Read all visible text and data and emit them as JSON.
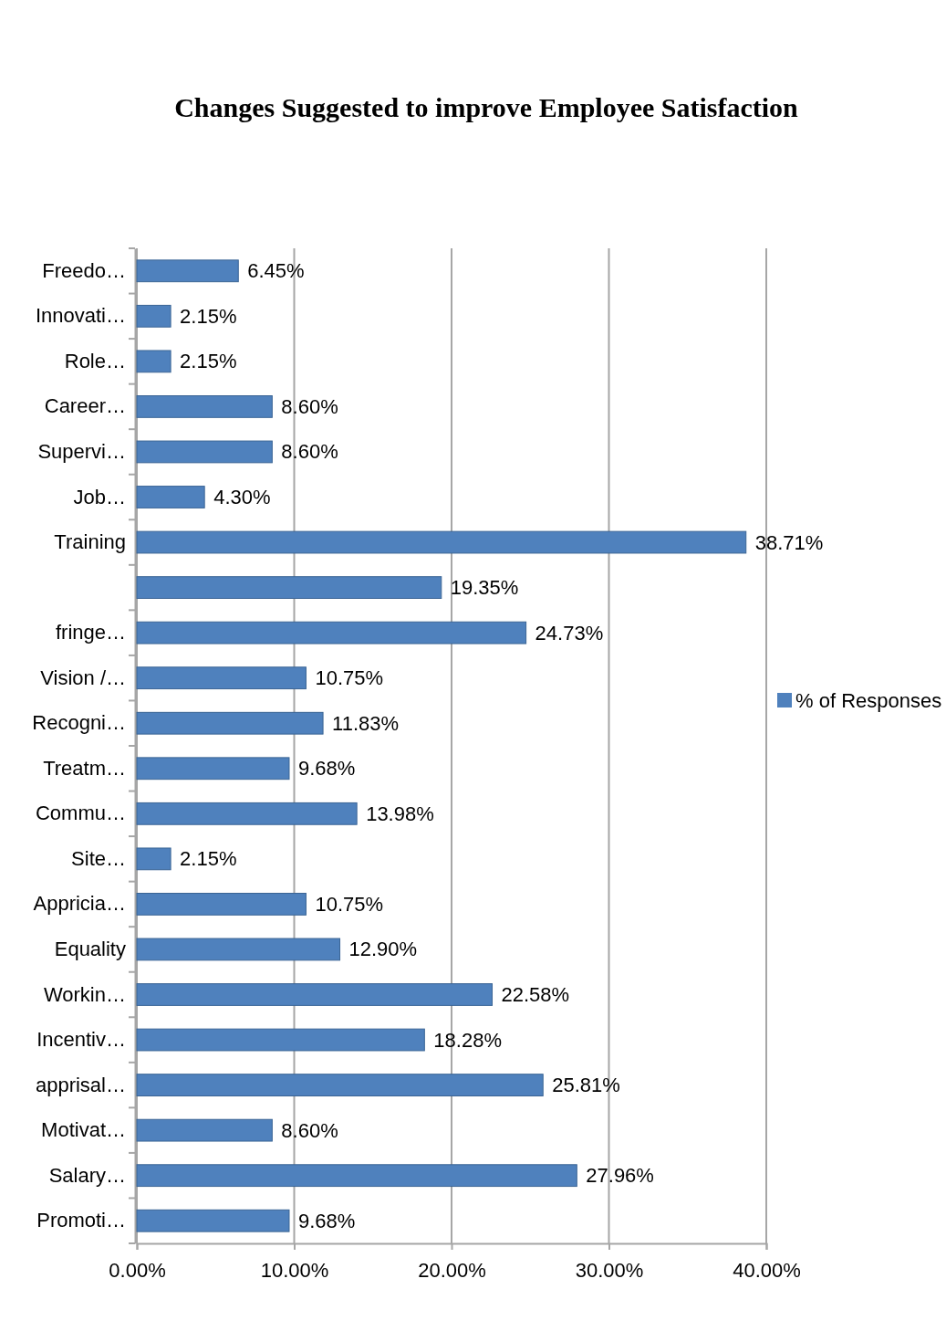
{
  "chart_data": {
    "type": "bar",
    "orientation": "horizontal",
    "title": "Changes Suggested to improve Employee Satisfaction",
    "categories": [
      "Freedo…",
      "Innovati…",
      "Role…",
      "Career…",
      "Supervi…",
      "Job…",
      "Training",
      null,
      "fringe…",
      "Vision /…",
      "Recogni…",
      "Treatm…",
      "Commu…",
      "Site…",
      "Appricia…",
      "Equality",
      "Workin…",
      "Incentiv…",
      "apprisal…",
      "Motivat…",
      "Salary…",
      "Promoti…"
    ],
    "series": [
      {
        "name": "% of Responses",
        "color": "#4f81bd",
        "values": [
          6.45,
          2.15,
          2.15,
          8.6,
          8.6,
          4.3,
          38.71,
          19.35,
          24.73,
          10.75,
          11.83,
          9.68,
          13.98,
          2.15,
          10.75,
          12.9,
          22.58,
          18.28,
          25.81,
          8.6,
          27.96,
          9.68
        ],
        "value_labels": [
          "6.45%",
          "2.15%",
          "2.15%",
          "8.60%",
          "8.60%",
          "4.30%",
          "38.71%",
          "19.35%",
          "24.73%",
          "10.75%",
          "11.83%",
          "9.68%",
          "13.98%",
          "2.15%",
          "10.75%",
          "12.90%",
          "22.58%",
          "18.28%",
          "25.81%",
          "8.60%",
          "27.96%",
          "9.68%"
        ]
      }
    ],
    "xlim": [
      0,
      40
    ],
    "xticks": [
      {
        "value": 0,
        "label": "0.00%"
      },
      {
        "value": 10,
        "label": "10.00%"
      },
      {
        "value": 20,
        "label": "20.00%"
      },
      {
        "value": 30,
        "label": "30.00%"
      },
      {
        "value": 40,
        "label": "40.00%"
      }
    ],
    "grid": "x",
    "legend": "right"
  }
}
